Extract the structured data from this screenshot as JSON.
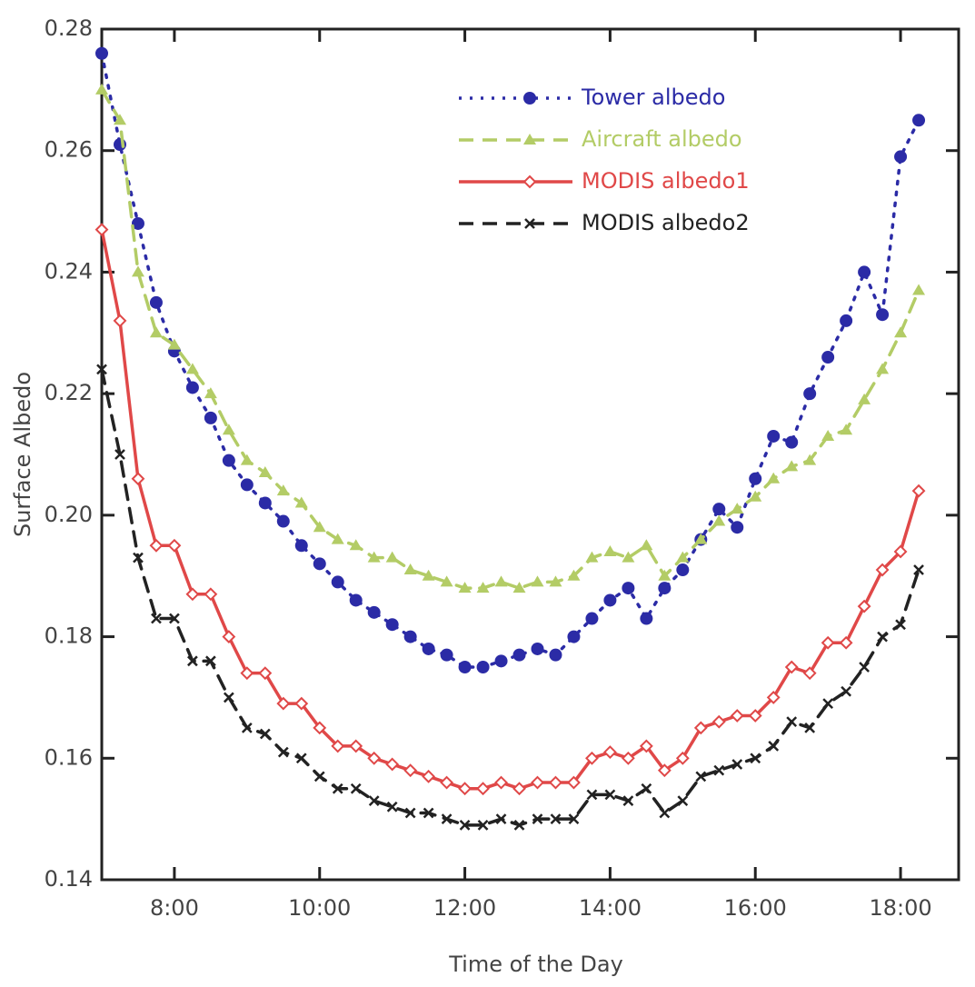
{
  "chart_data": {
    "type": "line",
    "xlabel": "Time of the Day",
    "ylabel": "Surface Albedo",
    "x": [
      7.0,
      7.25,
      7.5,
      7.75,
      8.0,
      8.25,
      8.5,
      8.75,
      9.0,
      9.25,
      9.5,
      9.75,
      10.0,
      10.25,
      10.5,
      10.75,
      11.0,
      11.25,
      11.5,
      11.75,
      12.0,
      12.25,
      12.5,
      12.75,
      13.0,
      13.25,
      13.5,
      13.75,
      14.0,
      14.25,
      14.5,
      14.75,
      15.0,
      15.25,
      15.5,
      15.75,
      16.0,
      16.25,
      16.5,
      16.75,
      17.0,
      17.25,
      17.5,
      17.75,
      18.0,
      18.25
    ],
    "series": [
      {
        "name": "Tower albedo",
        "color": "#2b2ba6",
        "line_style": "dotted",
        "marker": "circle",
        "values": [
          0.276,
          0.261,
          0.248,
          0.235,
          0.227,
          0.221,
          0.216,
          0.209,
          0.205,
          0.202,
          0.199,
          0.195,
          0.192,
          0.189,
          0.186,
          0.184,
          0.182,
          0.18,
          0.178,
          0.177,
          0.175,
          0.175,
          0.176,
          0.177,
          0.178,
          0.177,
          0.18,
          0.183,
          0.186,
          0.188,
          0.183,
          0.188,
          0.191,
          0.196,
          0.201,
          0.198,
          0.206,
          0.213,
          0.212,
          0.22,
          0.226,
          0.232,
          0.24,
          0.233,
          0.259,
          0.265
        ]
      },
      {
        "name": "Aircraft albedo",
        "color": "#b3cc66",
        "line_style": "dashed",
        "marker": "triangle",
        "values": [
          0.27,
          0.265,
          0.24,
          0.23,
          0.228,
          0.224,
          0.22,
          0.214,
          0.209,
          0.207,
          0.204,
          0.202,
          0.198,
          0.196,
          0.195,
          0.193,
          0.193,
          0.191,
          0.19,
          0.189,
          0.188,
          0.188,
          0.189,
          0.188,
          0.189,
          0.189,
          0.19,
          0.193,
          0.194,
          0.193,
          0.195,
          0.19,
          0.193,
          0.196,
          0.199,
          0.201,
          0.203,
          0.206,
          0.208,
          0.209,
          0.213,
          0.214,
          0.219,
          0.224,
          0.23,
          0.237
        ]
      },
      {
        "name": "MODIS albedo1",
        "color": "#e04848",
        "line_style": "solid",
        "marker": "diamond",
        "values": [
          0.247,
          0.232,
          0.206,
          0.195,
          0.195,
          0.187,
          0.187,
          0.18,
          0.174,
          0.174,
          0.169,
          0.169,
          0.165,
          0.162,
          0.162,
          0.16,
          0.159,
          0.158,
          0.157,
          0.156,
          0.155,
          0.155,
          0.156,
          0.155,
          0.156,
          0.156,
          0.156,
          0.16,
          0.161,
          0.16,
          0.162,
          0.158,
          0.16,
          0.165,
          0.166,
          0.167,
          0.167,
          0.17,
          0.175,
          0.174,
          0.179,
          0.179,
          0.185,
          0.191,
          0.194,
          0.204
        ]
      },
      {
        "name": "MODIS albedo2",
        "color": "#222222",
        "line_style": "dashed",
        "marker": "cross",
        "values": [
          0.224,
          0.21,
          0.193,
          0.183,
          0.183,
          0.176,
          0.176,
          0.17,
          0.165,
          0.164,
          0.161,
          0.16,
          0.157,
          0.155,
          0.155,
          0.153,
          0.152,
          0.151,
          0.151,
          0.15,
          0.149,
          0.149,
          0.15,
          0.149,
          0.15,
          0.15,
          0.15,
          0.154,
          0.154,
          0.153,
          0.155,
          0.151,
          0.153,
          0.157,
          0.158,
          0.159,
          0.16,
          0.162,
          0.166,
          0.165,
          0.169,
          0.171,
          0.175,
          0.18,
          0.182,
          0.191
        ]
      }
    ],
    "xlim": [
      7,
      18.8
    ],
    "xticks": [
      {
        "value": 8,
        "label": "8:00"
      },
      {
        "value": 10,
        "label": "10:00"
      },
      {
        "value": 12,
        "label": "12:00"
      },
      {
        "value": 14,
        "label": "14:00"
      },
      {
        "value": 16,
        "label": "16:00"
      },
      {
        "value": 18,
        "label": "18:00"
      }
    ],
    "ylim": [
      0.14,
      0.28
    ],
    "yticks": [
      0.14,
      0.16,
      0.18,
      {
        "value": 0.2,
        "label": "0.20"
      },
      0.22,
      0.24,
      0.26,
      0.28
    ],
    "legend": "upper right",
    "grid": false
  }
}
